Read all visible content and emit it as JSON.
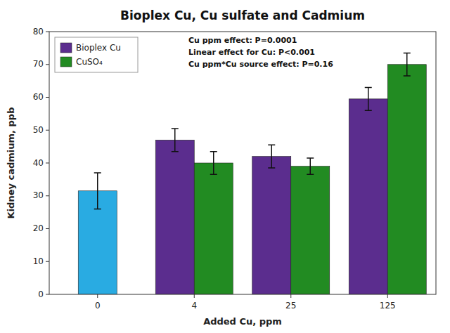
{
  "chart_data": {
    "type": "bar",
    "title": "Bioplex Cu, Cu sulfate and Cadmium",
    "x_label": "Added Cu, ppm",
    "y_label": "Kidney cadmium, ppb",
    "categories": [
      "0",
      "4",
      "25",
      "125"
    ],
    "series": [
      {
        "color": "#29ABE2",
        "values": [
          31.5,
          null,
          null,
          null
        ],
        "errors": [
          5.5,
          null,
          null,
          null
        ]
      },
      {
        "name": "Bioplex Cu",
        "color": "#5B2D8E",
        "values": [
          null,
          47.0,
          42.0,
          59.5
        ],
        "errors": [
          null,
          3.5,
          3.5,
          3.5
        ]
      },
      {
        "name": "CuSO₄",
        "color": "#228B22",
        "values": [
          null,
          40.0,
          39.0,
          70.0
        ],
        "errors": [
          null,
          3.5,
          2.5,
          3.5
        ]
      }
    ],
    "ylim": [
      0,
      80
    ],
    "yticks": [
      0,
      10,
      20,
      30,
      40,
      50,
      60,
      70,
      80
    ],
    "grid": false,
    "legend": "upper left",
    "annotations": [
      "Cu ppm effect: P=0.0001",
      "Linear effect for Cu: P<0.001",
      "Cu ppm*Cu source effect: P=0.16"
    ]
  }
}
